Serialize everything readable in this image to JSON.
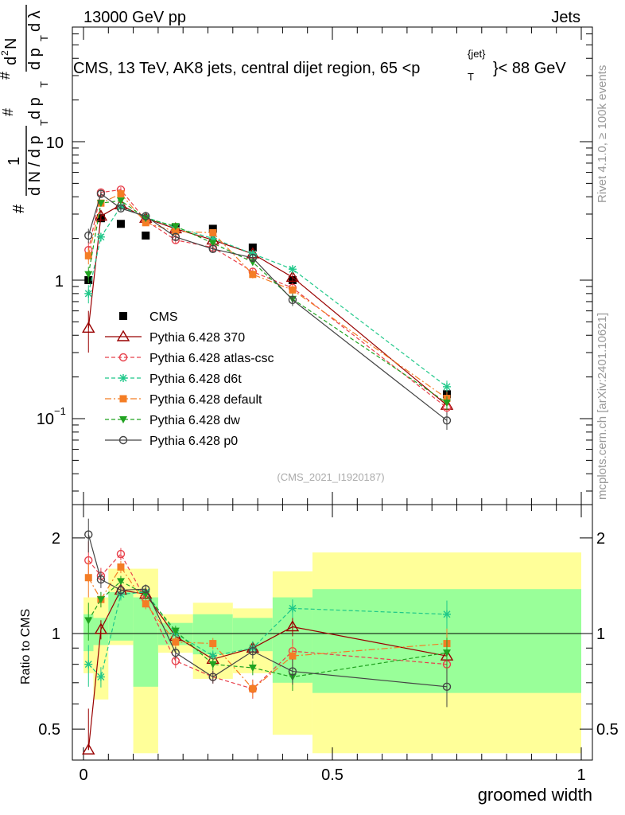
{
  "header": {
    "energy": "13000 GeV pp",
    "category": "Jets",
    "title": "CMS, 13 TeV, AK8 jets, central dijet region, 65 <p",
    "title_sup": "{jet}",
    "title_sub": "T",
    "title_end": "}< 88 GeV",
    "rivet": "Rivet 4.1.0, ≥ 100k events",
    "mcplots": "mcplots.cern.ch [arXiv:2401.10621]",
    "analysis": "(CMS_2021_I1920187)"
  },
  "axes": {
    "ylabel_top": "1/N dN/dp_T dp_T dλ",
    "ylabel_parts": [
      "#",
      "1",
      "d N / d p",
      "T",
      "#",
      "d p",
      "T",
      "d",
      "2",
      "N",
      "#",
      "d p",
      "T",
      "d λ"
    ],
    "ylabel_bottom": "Ratio to CMS",
    "xlabel": "groomed width",
    "top_ticks": [
      "10",
      "1",
      "10"
    ],
    "top_tick_exp": "−1",
    "bottom_ticks": [
      "2",
      "1",
      "0.5"
    ],
    "x_ticks": [
      "0",
      "0.5",
      "1"
    ]
  },
  "colors": {
    "CMS": "#000000",
    "p370": "#990000",
    "atlas": "#e8404b",
    "d6t": "#1ec889",
    "default": "#f47d25",
    "dw": "#21a321",
    "p0": "#444444",
    "band_yellow": "#ffff99",
    "band_green": "#99ff99"
  },
  "legend": [
    {
      "key": "CMS",
      "label": "CMS"
    },
    {
      "key": "p370",
      "label": "Pythia 6.428 370"
    },
    {
      "key": "atlas",
      "label": "Pythia 6.428 atlas-csc"
    },
    {
      "key": "d6t",
      "label": "Pythia 6.428 d6t"
    },
    {
      "key": "default",
      "label": "Pythia 6.428 default"
    },
    {
      "key": "dw",
      "label": "Pythia 6.428 dw"
    },
    {
      "key": "p0",
      "label": "Pythia 6.428 p0"
    }
  ],
  "chart_data": {
    "type": "line",
    "title": "CMS, 13 TeV, AK8 jets, central dijet region, 65 < p_T^{jet} < 88 GeV",
    "xlabel": "groomed width",
    "ylabel": "1/N dN/dp_T dp_T dλ",
    "xlim": [
      -0.02,
      1.0
    ],
    "ylim_top": [
      0.025,
      60
    ],
    "ylim_ratio": [
      0.42,
      2.4
    ],
    "bins": [
      [
        0.0,
        0.02
      ],
      [
        0.02,
        0.05
      ],
      [
        0.05,
        0.1
      ],
      [
        0.1,
        0.15
      ],
      [
        0.15,
        0.22
      ],
      [
        0.22,
        0.3
      ],
      [
        0.3,
        0.38
      ],
      [
        0.38,
        0.46
      ],
      [
        0.46,
        1.0
      ]
    ],
    "x": [
      0.01,
      0.035,
      0.075,
      0.125,
      0.185,
      0.26,
      0.34,
      0.42,
      0.73
    ],
    "series": [
      {
        "key": "CMS",
        "name": "CMS",
        "values": [
          1.0,
          2.8,
          2.55,
          2.1,
          2.4,
          2.35,
          1.72,
          1.0,
          0.15
        ]
      },
      {
        "key": "p370",
        "name": "Pythia 6.428 370",
        "values": [
          0.45,
          2.9,
          3.5,
          2.8,
          2.35,
          1.95,
          1.55,
          1.05,
          0.125
        ],
        "errors": [
          0.15,
          0.2,
          0.15,
          0.1,
          0.08,
          0.08,
          0.07,
          0.07,
          0.015
        ],
        "ratio": [
          0.43,
          1.03,
          1.37,
          1.33,
          0.98,
          0.83,
          0.9,
          1.05,
          0.85
        ]
      },
      {
        "key": "atlas",
        "name": "Pythia 6.428 atlas-csc",
        "values": [
          1.65,
          4.3,
          4.5,
          2.7,
          1.95,
          1.72,
          1.15,
          0.88,
          0.12
        ],
        "errors": [
          0.25,
          0.25,
          0.2,
          0.12,
          0.1,
          0.08,
          0.08,
          0.08,
          0.015
        ],
        "ratio": [
          1.7,
          1.52,
          1.78,
          1.28,
          0.82,
          0.73,
          0.67,
          0.88,
          0.8
        ]
      },
      {
        "key": "d6t",
        "name": "Pythia 6.428 d6t",
        "values": [
          0.8,
          2.05,
          3.4,
          2.85,
          2.4,
          2.0,
          1.55,
          1.2,
          0.17
        ],
        "errors": [
          0.12,
          0.15,
          0.15,
          0.1,
          0.09,
          0.08,
          0.08,
          0.08,
          0.018
        ],
        "ratio": [
          0.8,
          0.73,
          1.33,
          1.35,
          1.0,
          0.85,
          0.9,
          1.2,
          1.15
        ]
      },
      {
        "key": "default",
        "name": "Pythia 6.428 default",
        "values": [
          1.5,
          3.6,
          4.2,
          2.6,
          2.25,
          2.2,
          1.1,
          0.85,
          0.14
        ],
        "errors": [
          0.2,
          0.2,
          0.18,
          0.1,
          0.09,
          0.09,
          0.07,
          0.07,
          0.016
        ],
        "ratio": [
          1.5,
          1.28,
          1.62,
          1.24,
          0.94,
          0.93,
          0.67,
          0.85,
          0.93
        ]
      },
      {
        "key": "dw",
        "name": "Pythia 6.428 dw",
        "values": [
          1.1,
          3.6,
          3.75,
          2.8,
          2.45,
          1.85,
          1.35,
          0.73,
          0.13
        ],
        "errors": [
          0.15,
          0.2,
          0.15,
          0.1,
          0.09,
          0.08,
          0.07,
          0.07,
          0.015
        ],
        "ratio": [
          1.1,
          1.28,
          1.46,
          1.33,
          1.02,
          0.8,
          0.78,
          0.73,
          0.87
        ]
      },
      {
        "key": "p0",
        "name": "Pythia 6.428 p0",
        "values": [
          2.1,
          4.2,
          3.3,
          2.9,
          2.05,
          1.68,
          1.45,
          0.72,
          0.097
        ],
        "errors": [
          0.25,
          0.25,
          0.15,
          0.1,
          0.09,
          0.08,
          0.08,
          0.07,
          0.014
        ],
        "ratio": [
          2.05,
          1.48,
          1.37,
          1.38,
          0.87,
          0.73,
          0.88,
          0.76,
          0.68
        ]
      }
    ],
    "ratio_bands": {
      "yellow": [
        [
          0.75,
          1.3
        ],
        [
          0.62,
          1.3
        ],
        [
          0.92,
          1.6
        ],
        [
          0.42,
          1.6
        ],
        [
          0.87,
          1.15
        ],
        [
          0.72,
          1.25
        ],
        [
          0.75,
          1.2
        ],
        [
          0.48,
          1.57
        ],
        [
          0.42,
          1.8
        ]
      ],
      "green": [
        [
          0.88,
          1.15
        ],
        [
          0.92,
          1.12
        ],
        [
          0.95,
          1.35
        ],
        [
          0.68,
          1.3
        ],
        [
          0.92,
          1.08
        ],
        [
          0.86,
          1.15
        ],
        [
          0.88,
          1.12
        ],
        [
          0.7,
          1.3
        ],
        [
          0.65,
          1.38
        ]
      ]
    }
  }
}
